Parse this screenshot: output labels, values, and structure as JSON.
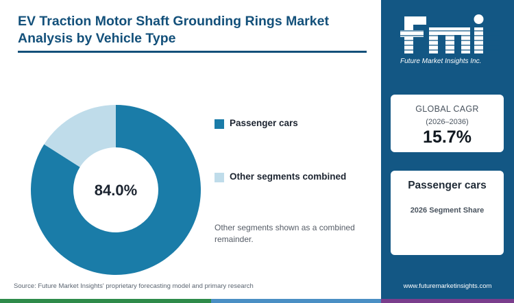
{
  "header": {
    "title": "EV Traction Motor Shaft Grounding Rings Market Analysis by Vehicle Type"
  },
  "chart_data": {
    "type": "pie",
    "style": "donut",
    "categories": [
      "Passenger cars",
      "Other segments combined"
    ],
    "values": [
      84.0,
      16.0
    ],
    "center_label": "84.0%",
    "colors": [
      "#1a7ca8",
      "#bfdcea"
    ],
    "legend_position": "right"
  },
  "legend": {
    "items": [
      {
        "label": "Passenger cars",
        "color": "#1a7ca8"
      },
      {
        "label": "Other segments combined",
        "color": "#bfdcea"
      }
    ]
  },
  "note": "Other segments shown as a combined remainder.",
  "source": "Source: Future Market Insights' proprietary forecasting model and primary research",
  "sidebar": {
    "logo": {
      "letters": "fmi",
      "tagline": "Future Market Insights Inc."
    },
    "cagr": {
      "label": "GLOBAL CAGR",
      "period": "(2026–2036)",
      "value": "15.7%"
    },
    "segment": {
      "name": "Passenger cars",
      "description": "2026 Segment Share"
    },
    "website": "www.futuremarketinsights.com"
  },
  "colors": {
    "title": "#13507a",
    "sidebar_bg": "#135784",
    "primary_slice": "#1a7ca8",
    "secondary_slice": "#bfdcea",
    "bottom_bar": [
      "#2e8b4a",
      "#4a8fc4",
      "#7a3d8c"
    ]
  }
}
